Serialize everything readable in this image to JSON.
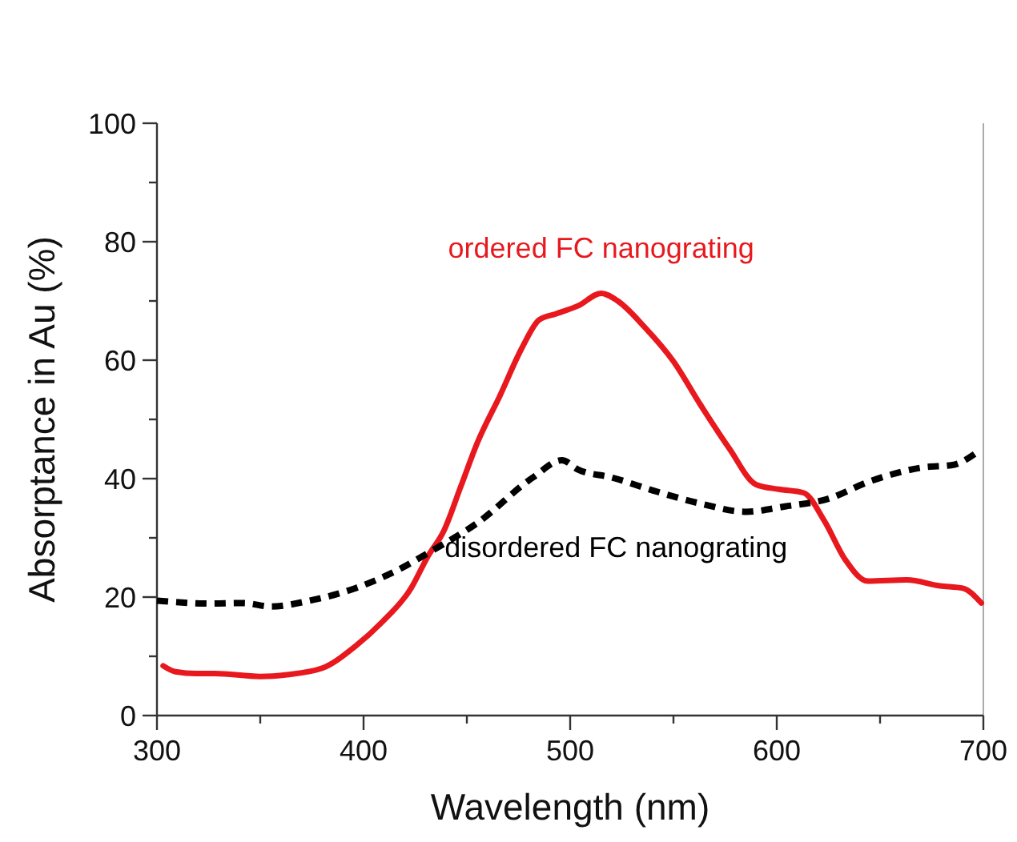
{
  "chart_data": {
    "type": "line",
    "xlabel": "Wavelength (nm)",
    "ylabel": "Absorptance in Au (%)",
    "xlim": [
      300,
      700
    ],
    "ylim": [
      0,
      100
    ],
    "xticks": [
      300,
      {
        "value": 350,
        "label": null
      },
      400,
      {
        "value": 450,
        "label": null
      },
      500,
      {
        "value": 550,
        "label": null
      },
      600,
      {
        "value": 650,
        "label": null
      },
      700
    ],
    "yticks": [
      0,
      {
        "value": 10,
        "label": null
      },
      20,
      {
        "value": 30,
        "label": null
      },
      40,
      {
        "value": 50,
        "label": null
      },
      60,
      {
        "value": 70,
        "label": null
      },
      80,
      {
        "value": 90,
        "label": null
      },
      100
    ],
    "grid": false,
    "marker": "none",
    "series": [
      {
        "name": "ordered FC nanograting",
        "color": "#e8191e",
        "line_style": "solid",
        "x": [
          303,
          309,
          319,
          328,
          350,
          363,
          380,
          396,
          409,
          423,
          431,
          439,
          447,
          455,
          466,
          477,
          485,
          493,
          504,
          515,
          523,
          536,
          550,
          563,
          577,
          590,
          601,
          613,
          623,
          633,
          644,
          663,
          679,
          690,
          699
        ],
        "values": [
          8.4,
          7.4,
          7.1,
          7.1,
          6.6,
          6.9,
          8.0,
          11.7,
          15.8,
          21.5,
          26.8,
          31.3,
          38.6,
          46,
          54,
          62.3,
          66.8,
          67.8,
          69.2,
          71.3,
          70,
          65.6,
          59.8,
          52.5,
          45.1,
          39,
          38.2,
          37.6,
          32.9,
          26.4,
          22.7,
          22.9,
          21.9,
          21.5,
          19
        ]
      },
      {
        "name": "disordered FC nanograting",
        "color": "#000000",
        "line_style": "dashed",
        "x": [
          300,
          326,
          342,
          355,
          374,
          396,
          415,
          434,
          455,
          482,
          496,
          504,
          520,
          542,
          563,
          585,
          604,
          625,
          644,
          671,
          685,
          698
        ],
        "values": [
          19.4,
          18.9,
          19,
          18.4,
          19.4,
          21.5,
          24.3,
          28,
          32.5,
          40.2,
          43.1,
          41.5,
          40.2,
          37.8,
          35.8,
          34.4,
          35.3,
          36.6,
          39.4,
          41.9,
          42.3,
          44.7
        ]
      }
    ]
  }
}
